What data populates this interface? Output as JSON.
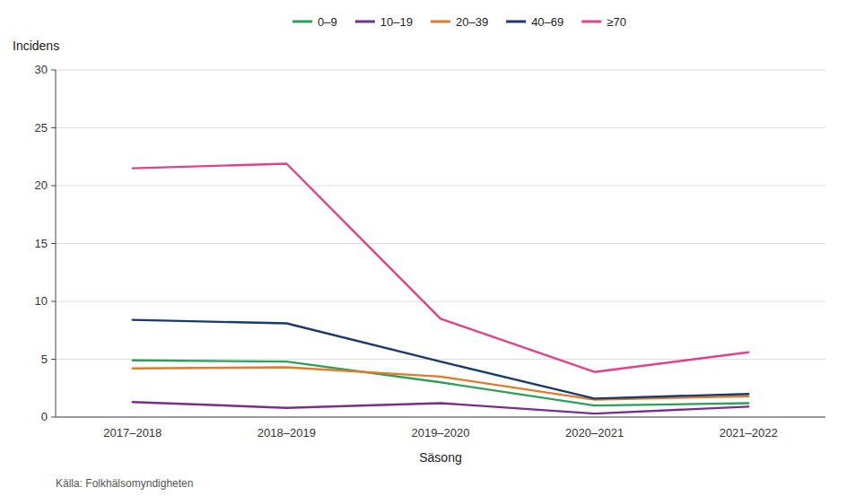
{
  "chart_data": {
    "type": "line",
    "xlabel": "Säsong",
    "ylabel": "Incidens",
    "source": "Källa: Folkhälsomyndigheten",
    "categories": [
      "2017–2018",
      "2018–2019",
      "2019–2020",
      "2020–2021",
      "2021–2022"
    ],
    "series": [
      {
        "name": "0–9",
        "color": "#2ca05a",
        "values": [
          4.9,
          4.8,
          3.0,
          1.0,
          1.2
        ]
      },
      {
        "name": "10–19",
        "color": "#7b2d8b",
        "values": [
          1.3,
          0.8,
          1.2,
          0.3,
          0.9
        ]
      },
      {
        "name": "20–39",
        "color": "#e07b28",
        "values": [
          4.2,
          4.3,
          3.5,
          1.5,
          1.8
        ]
      },
      {
        "name": "40–69",
        "color": "#1a3a6b",
        "values": [
          8.4,
          8.1,
          4.8,
          1.6,
          2.0
        ]
      },
      {
        "name": "≥70",
        "color": "#e0428a",
        "values": [
          21.5,
          21.9,
          8.5,
          3.9,
          5.6
        ]
      }
    ],
    "ylim": [
      0,
      30
    ],
    "yticks": [
      0,
      5,
      10,
      15,
      20,
      25,
      30
    ],
    "grid": true,
    "legend": "top"
  }
}
